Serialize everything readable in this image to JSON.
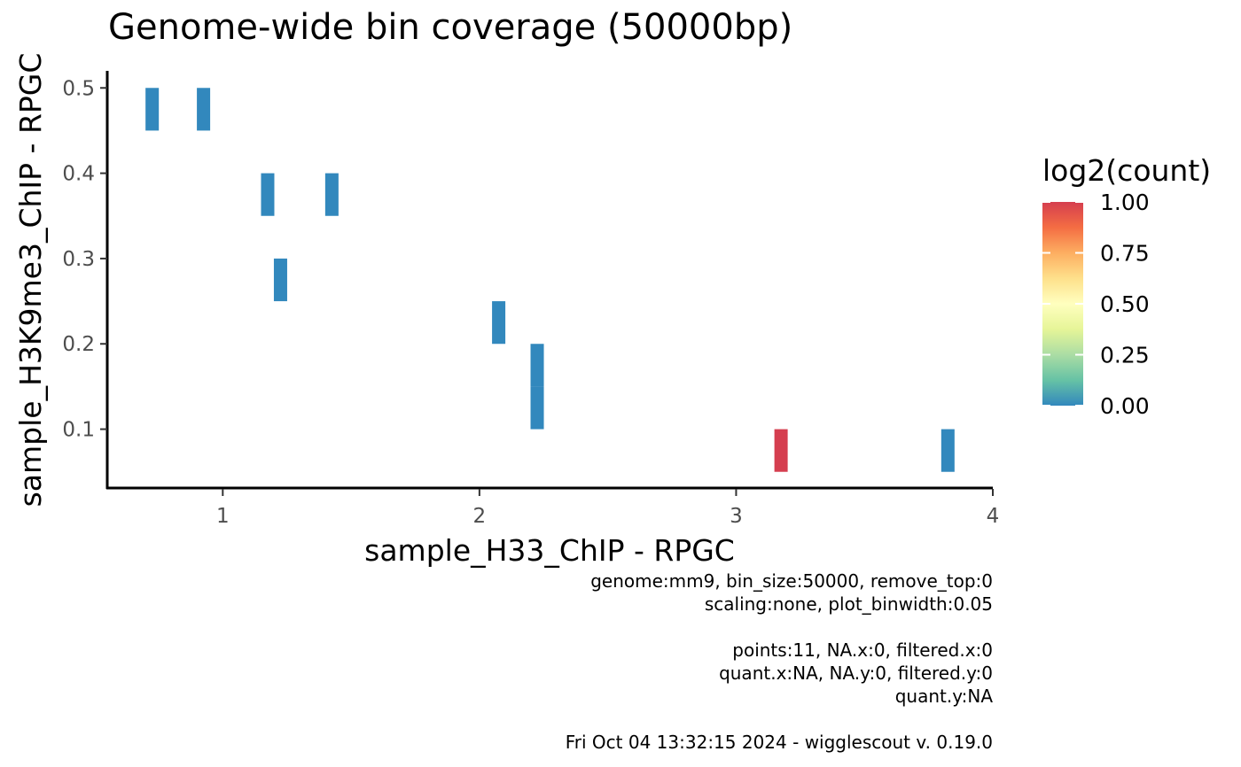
{
  "chart_data": {
    "type": "heatmap",
    "title": "Genome-wide bin coverage (50000bp)",
    "xlabel": "sample_H33_ChIP - RPGC",
    "ylabel": "sample_H3K9me3_ChIP - RPGC",
    "xlim": [
      0.55,
      4.0
    ],
    "ylim": [
      0.03,
      0.52
    ],
    "xticks": [
      1,
      2,
      3,
      4
    ],
    "xtick_labels": [
      "1",
      "2",
      "3",
      "4"
    ],
    "yticks": [
      0.1,
      0.2,
      0.3,
      0.4,
      0.5
    ],
    "ytick_labels": [
      "0.1",
      "0.2",
      "0.3",
      "0.4",
      "0.5"
    ],
    "bin_width": 0.05,
    "tiles": [
      {
        "x": 0.725,
        "y": 0.475,
        "value": 0
      },
      {
        "x": 0.925,
        "y": 0.475,
        "value": 0
      },
      {
        "x": 1.175,
        "y": 0.375,
        "value": 0
      },
      {
        "x": 1.425,
        "y": 0.375,
        "value": 0
      },
      {
        "x": 1.225,
        "y": 0.275,
        "value": 0
      },
      {
        "x": 2.075,
        "y": 0.225,
        "value": 0
      },
      {
        "x": 2.225,
        "y": 0.175,
        "value": 0
      },
      {
        "x": 2.225,
        "y": 0.125,
        "value": 0
      },
      {
        "x": 3.175,
        "y": 0.075,
        "value": 1
      },
      {
        "x": 3.825,
        "y": 0.075,
        "value": 0
      }
    ],
    "grid": false,
    "legend": {
      "title": "log2(count)",
      "position": "right",
      "min": 0,
      "max": 1,
      "breaks": [
        0,
        0.25,
        0.5,
        0.75,
        1
      ],
      "break_labels": [
        "0.00",
        "0.25",
        "0.50",
        "0.75",
        "1.00"
      ],
      "colors": [
        "#3288bd",
        "#66c2a5",
        "#abdda4",
        "#e6f598",
        "#ffffbf",
        "#fee08b",
        "#fdae61",
        "#f46d43",
        "#d53e4f"
      ]
    }
  },
  "captions": [
    "genome:mm9, bin_size:50000, remove_top:0",
    "scaling:none, plot_binwidth:0.05",
    "",
    "points:11, NA.x:0, filtered.x:0",
    "quant.x:NA, NA.y:0, filtered.y:0",
    "quant.y:NA",
    "",
    "Fri Oct 04 13:32:15 2024 - wigglescout v. 0.19.0"
  ]
}
